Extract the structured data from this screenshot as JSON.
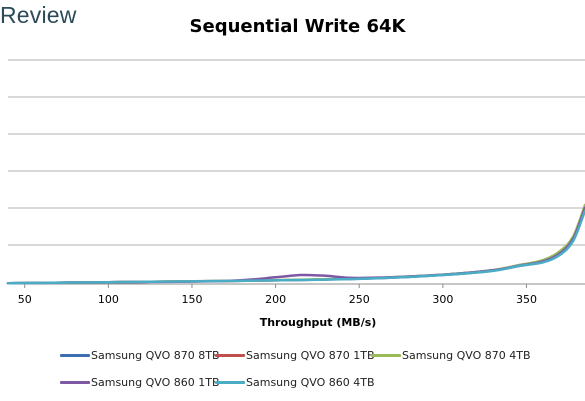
{
  "brand": "Review",
  "chart_data": {
    "type": "line",
    "title": "Sequential Write 64K",
    "xlabel": "Throughput (MB/s)",
    "ylabel": "",
    "xlim": [
      40,
      385
    ],
    "x_ticks": [
      50,
      100,
      150,
      200,
      250,
      300,
      350
    ],
    "grid": "horizontal",
    "legend_position": "bottom",
    "series": [
      {
        "name": "Samsung QVO 870 8TB",
        "color": "#3d6fb0",
        "x": [
          40,
          100,
          170,
          250,
          300,
          330,
          345,
          360,
          370,
          378,
          385
        ],
        "y": [
          0.05,
          0.12,
          0.2,
          0.35,
          0.6,
          0.9,
          1.2,
          1.5,
          2.0,
          3.0,
          5.0
        ]
      },
      {
        "name": "Samsung QVO 870 1TB",
        "color": "#c0504d",
        "x": [
          40,
          100,
          170,
          250,
          300,
          330,
          345,
          360,
          370,
          378,
          385
        ],
        "y": [
          0.05,
          0.12,
          0.2,
          0.36,
          0.62,
          0.92,
          1.25,
          1.55,
          2.1,
          3.1,
          5.2
        ]
      },
      {
        "name": "Samsung QVO 870 4TB",
        "color": "#9bbb59",
        "x": [
          40,
          100,
          170,
          250,
          300,
          330,
          345,
          360,
          370,
          378,
          385
        ],
        "y": [
          0.05,
          0.12,
          0.21,
          0.37,
          0.63,
          0.93,
          1.25,
          1.6,
          2.2,
          3.2,
          5.3
        ]
      },
      {
        "name": "Samsung QVO 860 1TB",
        "color": "#7e58a4",
        "x": [
          40,
          100,
          170,
          200,
          215,
          230,
          250,
          300,
          330,
          345,
          360,
          370,
          378,
          385
        ],
        "y": [
          0.05,
          0.12,
          0.2,
          0.45,
          0.6,
          0.55,
          0.4,
          0.62,
          0.92,
          1.22,
          1.52,
          2.05,
          3.05,
          5.1
        ]
      },
      {
        "name": "Samsung QVO 860 4TB",
        "color": "#4bacc6",
        "x": [
          40,
          100,
          170,
          250,
          300,
          330,
          345,
          360,
          370,
          378,
          385
        ],
        "y": [
          0.05,
          0.12,
          0.2,
          0.34,
          0.6,
          0.88,
          1.2,
          1.45,
          1.95,
          2.9,
          4.9
        ]
      }
    ],
    "ylim": [
      0,
      15
    ]
  }
}
